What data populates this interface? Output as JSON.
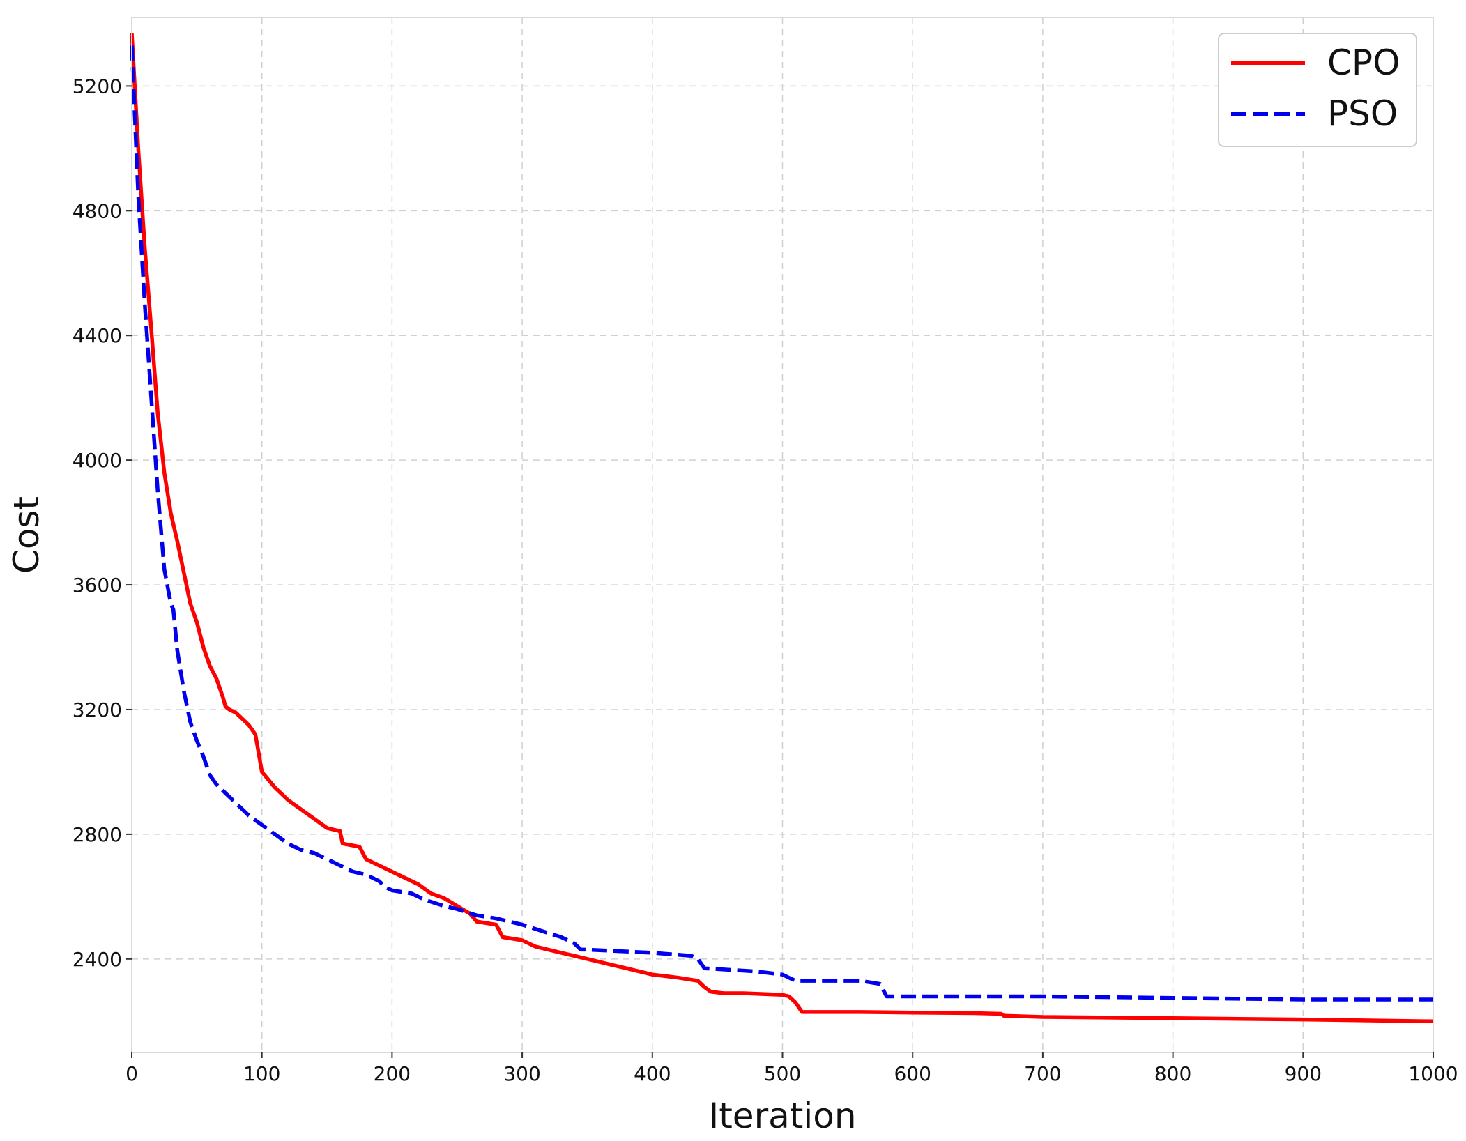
{
  "chart_data": {
    "type": "line",
    "title": "",
    "xlabel": "Iteration",
    "ylabel": "Cost",
    "xlim": [
      0,
      1000
    ],
    "ylim": [
      2100,
      5420
    ],
    "xticks": [
      0,
      100,
      200,
      300,
      400,
      500,
      600,
      700,
      800,
      900,
      1000
    ],
    "yticks": [
      2400,
      2800,
      3200,
      3600,
      4000,
      4400,
      4800,
      5200
    ],
    "grid": true,
    "legend_position": "top-right",
    "series": [
      {
        "name": "CPO",
        "color": "#ff0000",
        "style": "solid",
        "x": [
          0,
          5,
          10,
          15,
          20,
          25,
          30,
          35,
          40,
          45,
          50,
          55,
          60,
          65,
          70,
          72,
          75,
          80,
          90,
          95,
          100,
          102,
          110,
          120,
          130,
          140,
          150,
          160,
          162,
          175,
          180,
          190,
          200,
          220,
          230,
          240,
          250,
          260,
          265,
          280,
          285,
          300,
          310,
          320,
          330,
          340,
          350,
          360,
          370,
          380,
          390,
          400,
          410,
          420,
          435,
          440,
          445,
          455,
          470,
          500,
          505,
          510,
          515,
          560,
          600,
          650,
          668,
          670,
          700,
          800,
          900,
          1000
        ],
        "y": [
          5370,
          5000,
          4680,
          4420,
          4150,
          3960,
          3830,
          3740,
          3640,
          3540,
          3480,
          3400,
          3340,
          3300,
          3240,
          3210,
          3200,
          3190,
          3150,
          3120,
          3000,
          2990,
          2950,
          2910,
          2880,
          2850,
          2820,
          2810,
          2770,
          2760,
          2720,
          2700,
          2680,
          2640,
          2610,
          2595,
          2570,
          2545,
          2520,
          2510,
          2470,
          2460,
          2440,
          2430,
          2420,
          2410,
          2400,
          2390,
          2380,
          2370,
          2360,
          2350,
          2345,
          2340,
          2330,
          2310,
          2295,
          2290,
          2290,
          2285,
          2280,
          2260,
          2230,
          2230,
          2228,
          2226,
          2224,
          2218,
          2214,
          2210,
          2206,
          2200
        ]
      },
      {
        "name": "PSO",
        "color": "#0000ee",
        "style": "dashed",
        "x": [
          0,
          5,
          10,
          15,
          20,
          25,
          30,
          32,
          35,
          40,
          45,
          50,
          55,
          60,
          65,
          70,
          80,
          90,
          100,
          110,
          120,
          130,
          140,
          150,
          160,
          170,
          180,
          190,
          195,
          200,
          215,
          225,
          240,
          250,
          265,
          280,
          300,
          315,
          330,
          340,
          345,
          350,
          400,
          430,
          435,
          440,
          480,
          500,
          505,
          510,
          520,
          560,
          575,
          580,
          600,
          700,
          800,
          900,
          1000
        ],
        "y": [
          5330,
          4850,
          4500,
          4200,
          3900,
          3650,
          3540,
          3520,
          3390,
          3260,
          3160,
          3100,
          3050,
          2990,
          2960,
          2940,
          2900,
          2860,
          2830,
          2800,
          2770,
          2750,
          2740,
          2720,
          2700,
          2680,
          2670,
          2650,
          2630,
          2620,
          2610,
          2590,
          2570,
          2560,
          2540,
          2530,
          2510,
          2490,
          2470,
          2450,
          2430,
          2430,
          2420,
          2410,
          2400,
          2370,
          2360,
          2350,
          2340,
          2330,
          2330,
          2330,
          2320,
          2280,
          2280,
          2280,
          2275,
          2270,
          2270
        ]
      }
    ]
  }
}
